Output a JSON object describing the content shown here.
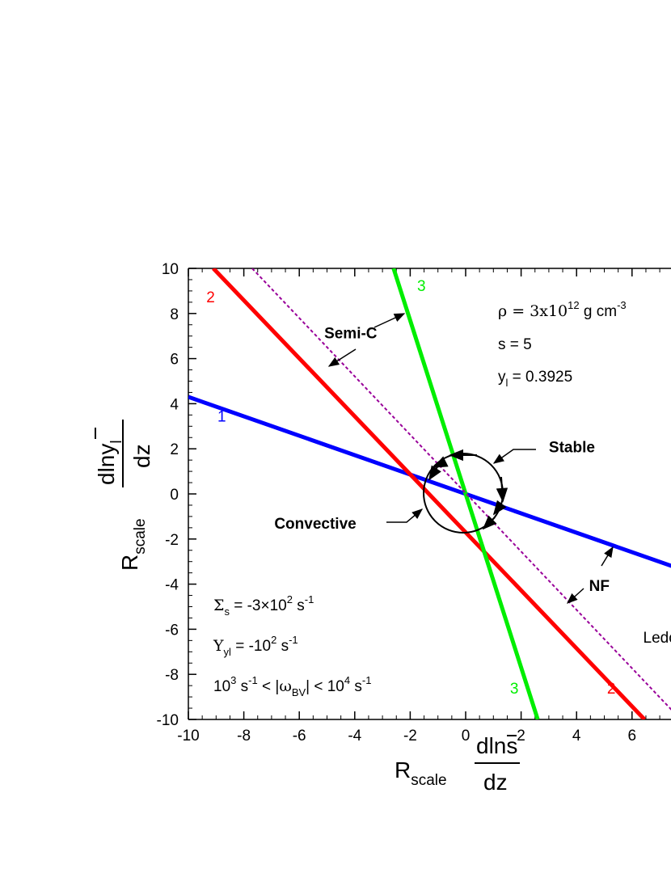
{
  "chart_data": {
    "type": "line",
    "xlim": [
      -10,
      7.6
    ],
    "ylim": [
      -10,
      10
    ],
    "x_ticks": [
      -10,
      -8,
      -6,
      -4,
      -2,
      0,
      2,
      4,
      6
    ],
    "y_ticks": [
      -10,
      -8,
      -6,
      -4,
      -2,
      0,
      2,
      4,
      6,
      8,
      10
    ],
    "x_tick_labels": [
      "-10",
      "-8",
      "-6",
      "-4",
      "-2",
      "0",
      "2",
      "4",
      "6"
    ],
    "y_tick_labels": [
      "-10",
      "-8",
      "-6",
      "-4",
      "-2",
      "0",
      "2",
      "4",
      "6",
      "8",
      "10"
    ],
    "xlabel": {
      "main": "R",
      "sub": "scale",
      "frac_num": "dlns",
      "frac_den": "dz"
    },
    "ylabel": {
      "main": "R",
      "sub": "scale",
      "frac_num": "dlny",
      "frac_num_sub": "l",
      "frac_den": "dz"
    },
    "series": [
      {
        "name": "1",
        "color": "#0000ff",
        "x": [
          -10,
          7.6
        ],
        "y": [
          4.3,
          -3.27
        ]
      },
      {
        "name": "2",
        "color": "#ff0000",
        "x": [
          -9.1,
          6.45
        ],
        "y": [
          10,
          -10
        ]
      },
      {
        "name": "3",
        "color": "#00ee00",
        "x": [
          -2.6,
          2.6
        ],
        "y": [
          10,
          -10
        ]
      },
      {
        "name": "Ledoux",
        "color": "#990099",
        "x": [
          -7.7,
          7.6
        ],
        "y": [
          10,
          -9.8
        ]
      }
    ],
    "line_labels": [
      {
        "text": "1",
        "color": "#0000ff",
        "x": -8.95,
        "y": 3.2
      },
      {
        "text": "2",
        "color": "#ff0000",
        "x": -9.35,
        "y": 8.5
      },
      {
        "text": "2",
        "color": "#ff0000",
        "x": 5.1,
        "y": -8.85
      },
      {
        "text": "3",
        "color": "#00ee00",
        "x": -1.75,
        "y": 9.0
      },
      {
        "text": "3",
        "color": "#00ee00",
        "x": 1.6,
        "y": -8.85
      },
      {
        "text": "Ledou",
        "color": "#000000",
        "x": 6.4,
        "y": -6.6
      }
    ],
    "annotations": [
      {
        "text": "Semi-C",
        "x": -5.1,
        "y": 6.9
      },
      {
        "text": "Stable",
        "x": 3.0,
        "y": 1.85
      },
      {
        "text": "Convective",
        "x": -6.9,
        "y": -1.55
      },
      {
        "text": "NF",
        "x": 4.45,
        "y": -4.3
      }
    ],
    "params": {
      "rho": {
        "pre": "ρ = 3x10",
        "sup": "12",
        "post": " g cm",
        "post_sup": "-3"
      },
      "s": "s = 5",
      "yl": {
        "pre": "y",
        "sub": "l",
        "post": " = 0.3925"
      },
      "sigma": {
        "sym": "Σ",
        "sub": "s",
        "mid": " = -3×10",
        "sup": "2",
        "unit": " s",
        "unit_sup": "-1"
      },
      "upsilon": {
        "sym": "Υ",
        "sub": "yl",
        "mid": " = -10",
        "sup": "2",
        "unit": " s",
        "unit_sup": "-1"
      },
      "omega": {
        "p1": "10",
        "p1_sup": "3",
        "p2": " s",
        "p2_sup": "-1",
        "p3": " < |",
        "sym": "ω",
        "sub": "BV",
        "p4": "| < 10",
        "p4_sup": "4",
        "p5": " s",
        "p5_sup": "-1"
      }
    }
  }
}
